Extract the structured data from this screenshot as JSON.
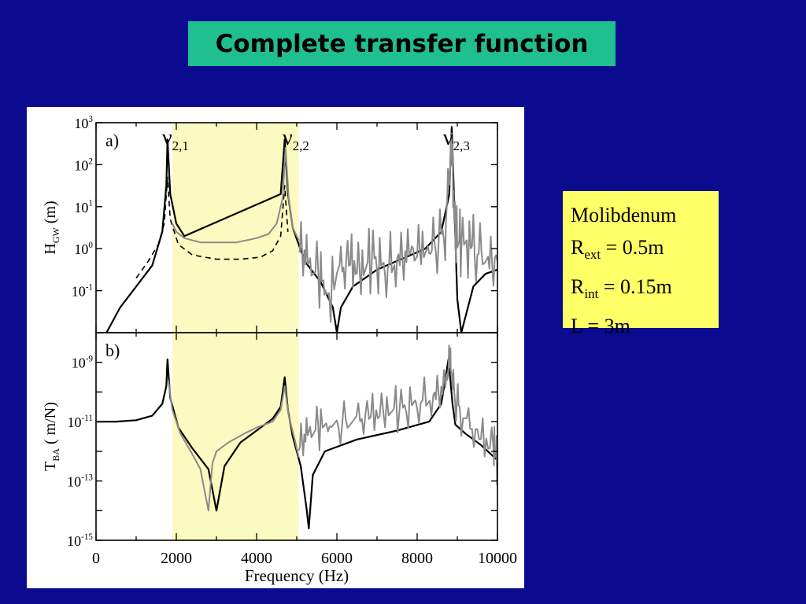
{
  "slide": {
    "title": "Complete transfer function"
  },
  "info_box": {
    "material": "Molibdenum",
    "r_ext": {
      "main": "R",
      "sub": "ext",
      "rest": " = 0.5m"
    },
    "r_int": {
      "main": "R",
      "sub": "int",
      "rest": " = 0.15m"
    },
    "length": "L = 3m"
  },
  "colors": {
    "background": "#0b0b8f",
    "title_bg": "#1fbf8f",
    "info_bg": "#ffff66",
    "band": "#fbfac0",
    "grey_curve": "#8a8a8a",
    "black_curve": "#000000"
  },
  "chart_data": [
    {
      "type": "line",
      "panel_label": "a)",
      "ylabel": {
        "main": "H",
        "sub": "GW",
        "rest": " (m)"
      },
      "yscale": "log",
      "ylim_exp": [
        -2,
        3
      ],
      "yticks": [
        {
          "base": "10",
          "exp": "3",
          "e": 3
        },
        {
          "base": "10",
          "exp": "2",
          "e": 2
        },
        {
          "base": "10",
          "exp": "1",
          "e": 1
        },
        {
          "base": "10",
          "exp": "0",
          "e": 0
        },
        {
          "base": "10",
          "exp": "-1",
          "e": -1
        }
      ],
      "xlim": [
        0,
        10000
      ],
      "shaded_band": [
        1900,
        5050
      ],
      "mode_labels": [
        {
          "nu": "ν",
          "sub": "2,1",
          "x": 2000
        },
        {
          "nu": "ν",
          "sub": "2,2",
          "x": 5000
        },
        {
          "nu": "ν",
          "sub": "2,3",
          "x": 9000
        }
      ],
      "series": [
        {
          "style": "black-solid",
          "x": [
            260,
            600,
            1000,
            1400,
            1650,
            1750,
            1780,
            1850,
            2000,
            2200,
            4600,
            4700,
            4780,
            4900,
            5200,
            5600,
            5900,
            6000,
            6100,
            6400,
            7000,
            7600,
            8200,
            8600,
            8800,
            8860,
            8920,
            9000,
            9100,
            9400,
            9700,
            10000
          ],
          "y": [
            -2,
            -1.4,
            -0.9,
            -0.4,
            0.4,
            1.5,
            2.6,
            1.3,
            0.6,
            0.3,
            1.3,
            2.6,
            1.3,
            0.5,
            -0.3,
            -0.8,
            -1.4,
            -2,
            -1.4,
            -0.9,
            -0.5,
            -0.25,
            0,
            0.4,
            1.3,
            2.9,
            1.2,
            -1.2,
            -2,
            -0.9,
            -0.6,
            -0.5
          ]
        },
        {
          "style": "black-dashed",
          "x": [
            1000,
            1300,
            1550,
            1700,
            1780,
            1850,
            2050,
            2400,
            3000,
            3600,
            4100,
            4400,
            4600,
            4700,
            4780
          ],
          "y": [
            -0.7,
            -0.3,
            0.1,
            0.6,
            1.7,
            0.7,
            0.1,
            -0.15,
            -0.25,
            -0.25,
            -0.2,
            -0.05,
            0.3,
            1.5,
            0.4
          ]
        },
        {
          "style": "grey",
          "x": [
            1900,
            2000,
            2200,
            2600,
            3000,
            3500,
            4000,
            4300,
            4500,
            4650,
            4720,
            4800,
            4900,
            5050
          ],
          "y": [
            0.6,
            0.4,
            0.25,
            0.15,
            0.15,
            0.15,
            0.25,
            0.35,
            0.6,
            1.2,
            2.4,
            1.2,
            0.5,
            0.2
          ]
        },
        {
          "style": "grey-noisy",
          "x": [
            5050,
            5300,
            5600,
            5800,
            6000,
            6300,
            6600,
            6900,
            7200,
            7500,
            7800,
            8100,
            8400,
            8700,
            8850,
            8950,
            9100,
            9400,
            9700,
            10000
          ],
          "y": [
            0.1,
            -0.4,
            -0.7,
            -1.2,
            -0.6,
            -0.3,
            -0.6,
            -0.25,
            -0.5,
            -0.3,
            -0.1,
            -0.2,
            0,
            0.4,
            2.6,
            0.2,
            0.1,
            0,
            -0.3,
            -0.3
          ]
        }
      ]
    },
    {
      "type": "line",
      "panel_label": "b)",
      "ylabel": {
        "main": "T",
        "sub": "BA",
        "rest": "  ( m/N)"
      },
      "yscale": "log",
      "ylim_exp": [
        -15,
        -8
      ],
      "yticks": [
        {
          "base": "10",
          "exp": "-9",
          "e": -9
        },
        {
          "base": "10",
          "exp": "-11",
          "e": -11
        },
        {
          "base": "10",
          "exp": "-13",
          "e": -13
        },
        {
          "base": "10",
          "exp": "-15",
          "e": -15
        }
      ],
      "xticks": [
        "0",
        "2000",
        "4000",
        "6000",
        "8000",
        "10000"
      ],
      "xtick_values": [
        0,
        2000,
        4000,
        6000,
        8000,
        10000
      ],
      "xlabel": "Frequency (Hz)",
      "xlim": [
        0,
        10000
      ],
      "shaded_band": [
        1900,
        5050
      ],
      "series": [
        {
          "style": "black-solid",
          "x": [
            0,
            500,
            1000,
            1400,
            1650,
            1750,
            1780,
            1850,
            2050,
            2400,
            2800,
            3000,
            3200,
            3600,
            4000,
            4400,
            4600,
            4700,
            4780,
            4900,
            5100,
            5250,
            5300,
            5400,
            5700,
            6500,
            7500,
            8300,
            8600,
            8780,
            8880,
            8950,
            9200,
            9600,
            10000
          ],
          "y": [
            -11,
            -11,
            -10.95,
            -10.8,
            -10.4,
            -9.8,
            -8.9,
            -10.2,
            -11.2,
            -11.9,
            -12.6,
            -14,
            -12.5,
            -11.7,
            -11.3,
            -10.9,
            -10.5,
            -9.5,
            -10.6,
            -11.5,
            -12.5,
            -14,
            -14.6,
            -12.8,
            -12,
            -11.6,
            -11.3,
            -11,
            -10.4,
            -8.9,
            -10.4,
            -11.1,
            -11.4,
            -11.8,
            -12.3
          ]
        },
        {
          "style": "grey",
          "x": [
            1800,
            1900,
            2100,
            2400,
            2600,
            2800,
            2900,
            3000,
            3300,
            3700,
            4000,
            4400,
            4600,
            4700,
            4800,
            4950,
            5050
          ],
          "y": [
            -9.6,
            -10.6,
            -11.4,
            -12.1,
            -12.6,
            -14,
            -12.4,
            -12,
            -11.7,
            -11.4,
            -11.2,
            -11,
            -10.6,
            -9.8,
            -10.8,
            -11.6,
            -12.2
          ]
        },
        {
          "style": "grey-noisy",
          "x": [
            5050,
            5300,
            5600,
            6000,
            6400,
            6800,
            7200,
            7600,
            8000,
            8400,
            8700,
            8820,
            8900,
            9100,
            9500,
            9900,
            10000
          ],
          "y": [
            -11.8,
            -11.4,
            -11.2,
            -11.1,
            -11,
            -10.8,
            -10.7,
            -10.6,
            -10.4,
            -10.2,
            -9.8,
            -9,
            -10,
            -10.8,
            -11.4,
            -11.9,
            -12.4
          ]
        }
      ]
    }
  ]
}
